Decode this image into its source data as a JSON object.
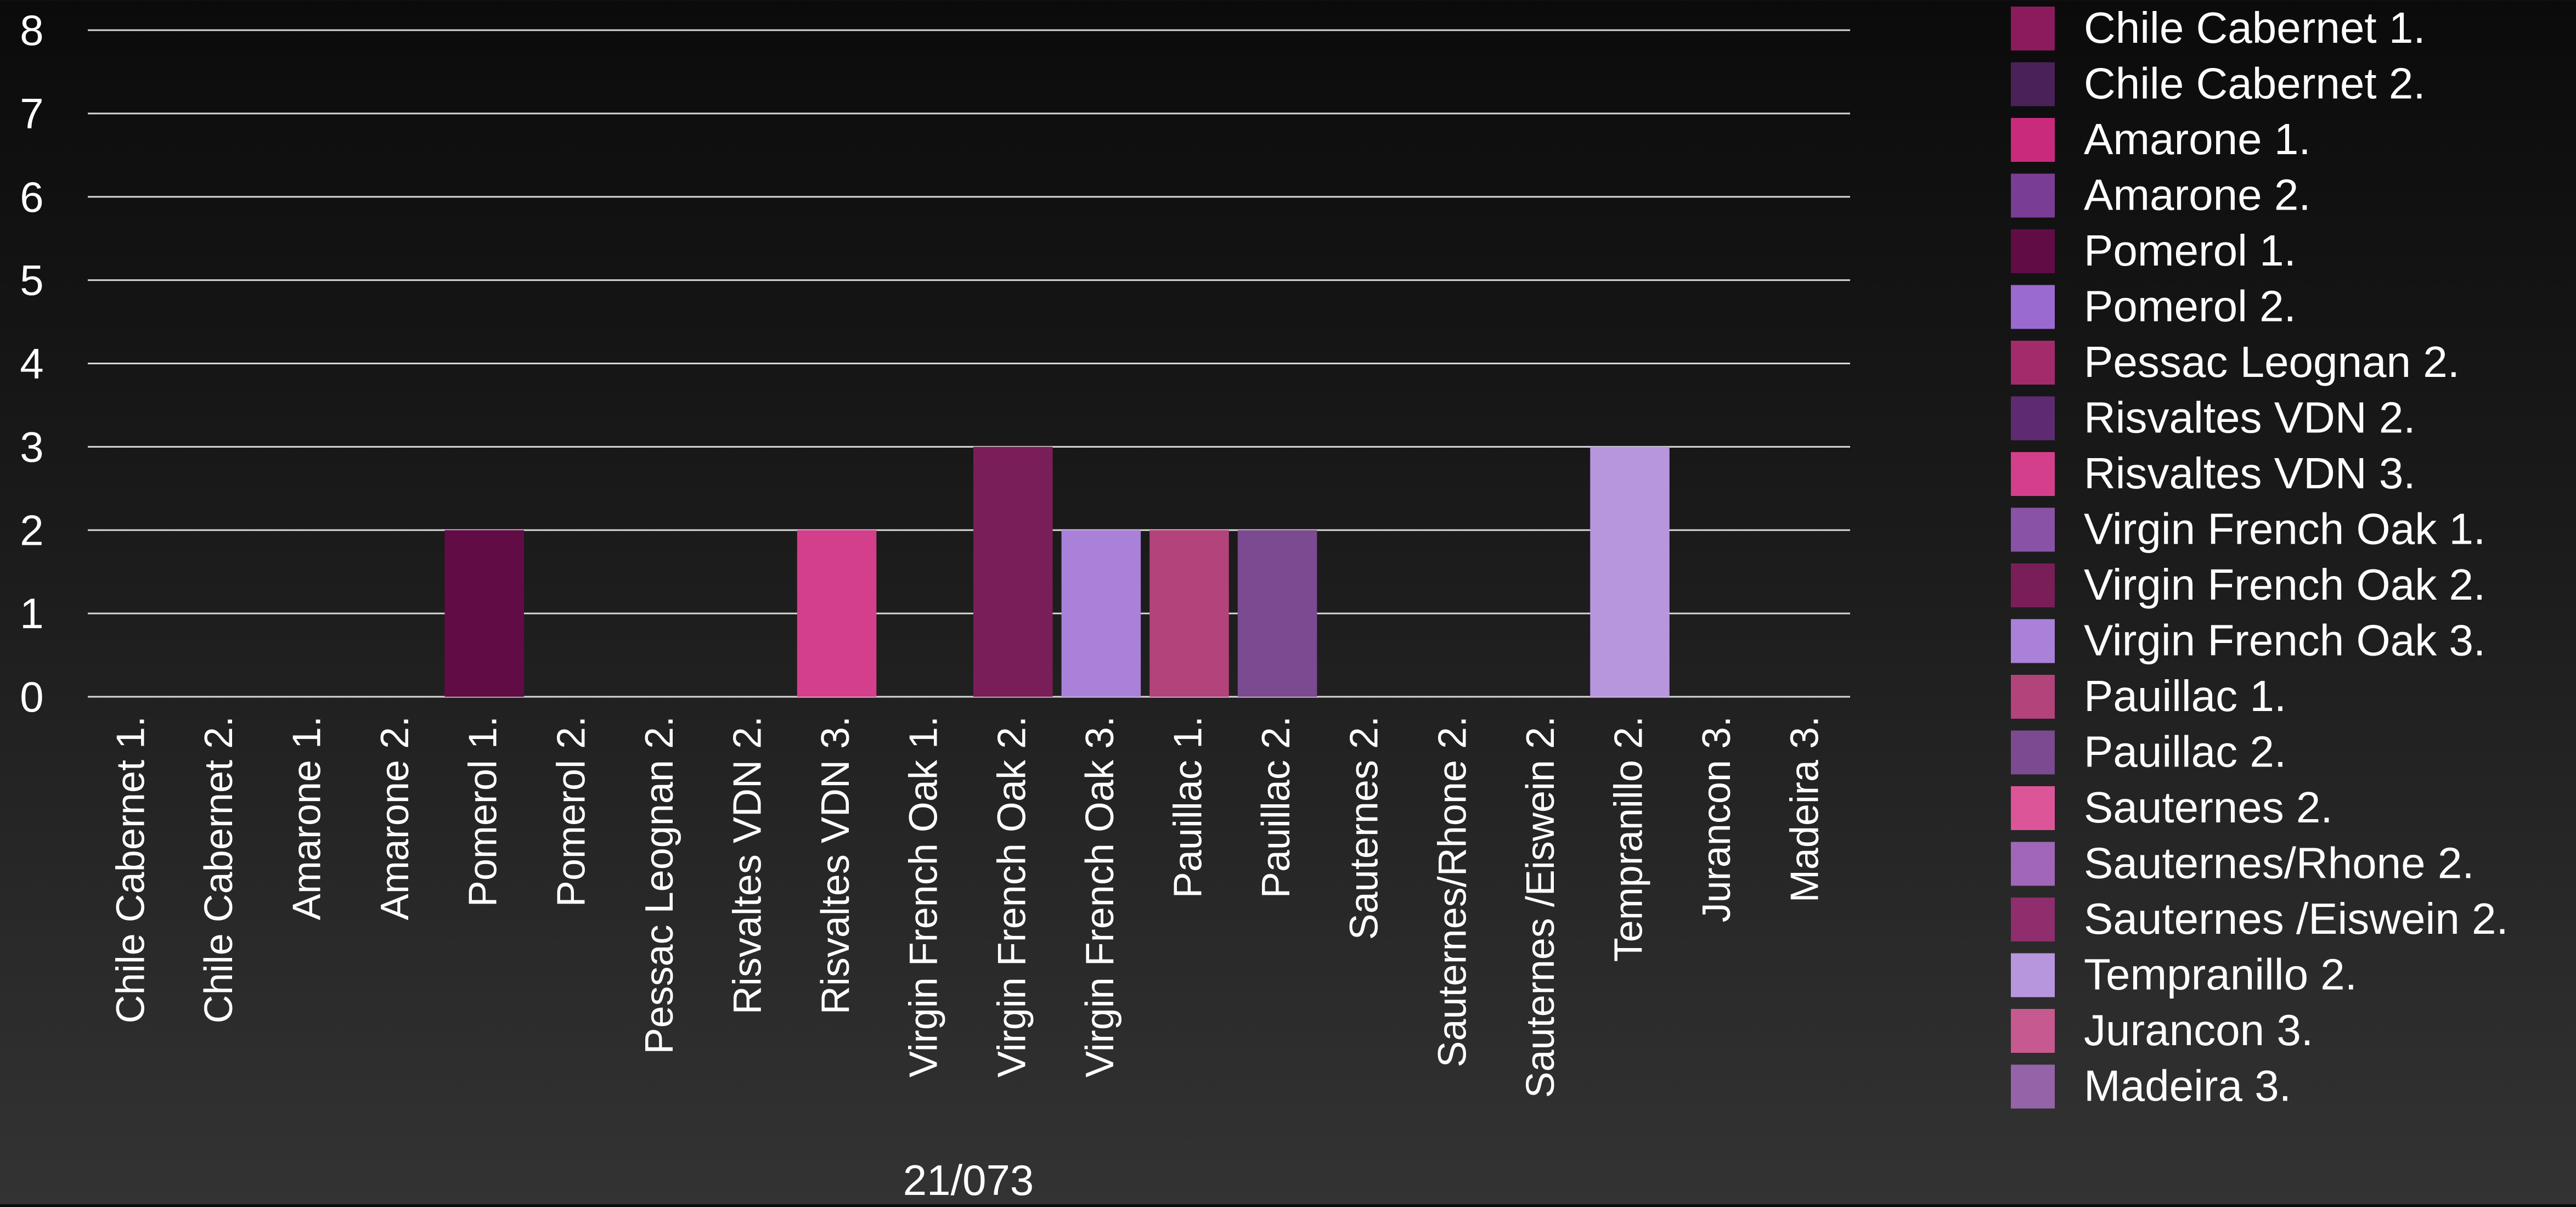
{
  "chart_data": {
    "type": "bar",
    "xlabel": "21/073",
    "ylabel": "",
    "ylim": [
      0,
      8
    ],
    "yticks": [
      "0",
      "1",
      "2",
      "3",
      "4",
      "5",
      "6",
      "7",
      "8"
    ],
    "grid": true,
    "legend_position": "right",
    "categories": [
      "Chile Cabernet 1.",
      "Chile Cabernet 2.",
      "Amarone 1.",
      "Amarone 2.",
      "Pomerol 1.",
      "Pomerol 2.",
      "Pessac Leognan 2.",
      "Risvaltes VDN 2.",
      "Risvaltes VDN 3.",
      "Virgin French Oak 1.",
      "Virgin French Oak 2.",
      "Virgin French Oak 3.",
      "Pauillac 1.",
      "Pauillac 2.",
      "Sauternes 2.",
      "Sauternes/Rhone 2.",
      "Sauternes /Eiswein 2.",
      "Tempranillo 2.",
      "Jurancon 3.",
      "Madeira 3."
    ],
    "values": [
      0,
      0,
      0,
      0,
      2,
      0,
      0,
      0,
      2,
      0,
      3,
      2,
      2,
      2,
      0,
      0,
      0,
      3,
      0,
      0
    ],
    "colors": [
      "#8c1b5e",
      "#4a2158",
      "#c92a7c",
      "#7a3d96",
      "#620c46",
      "#9a6ad0",
      "#a32b6c",
      "#5e2b73",
      "#d43f8b",
      "#8952a6",
      "#7a1e58",
      "#a981d9",
      "#b2437b",
      "#7b4a90",
      "#dc5599",
      "#a166b7",
      "#8f2d6d",
      "#b896dd",
      "#c65a90",
      "#9563a7"
    ],
    "legend": [
      "Chile Cabernet 1.",
      "Chile Cabernet 2.",
      "Amarone 1.",
      "Amarone 2.",
      "Pomerol 1.",
      "Pomerol 2.",
      "Pessac Leognan 2.",
      "Risvaltes VDN 2.",
      "Risvaltes VDN 3.",
      "Virgin French Oak 1.",
      "Virgin French Oak 2.",
      "Virgin French Oak 3.",
      "Pauillac 1.",
      "Pauillac 2.",
      "Sauternes 2.",
      "Sauternes/Rhone 2.",
      "Sauternes /Eiswein 2.",
      "Tempranillo 2.",
      "Jurancon 3.",
      "Madeira 3."
    ]
  }
}
